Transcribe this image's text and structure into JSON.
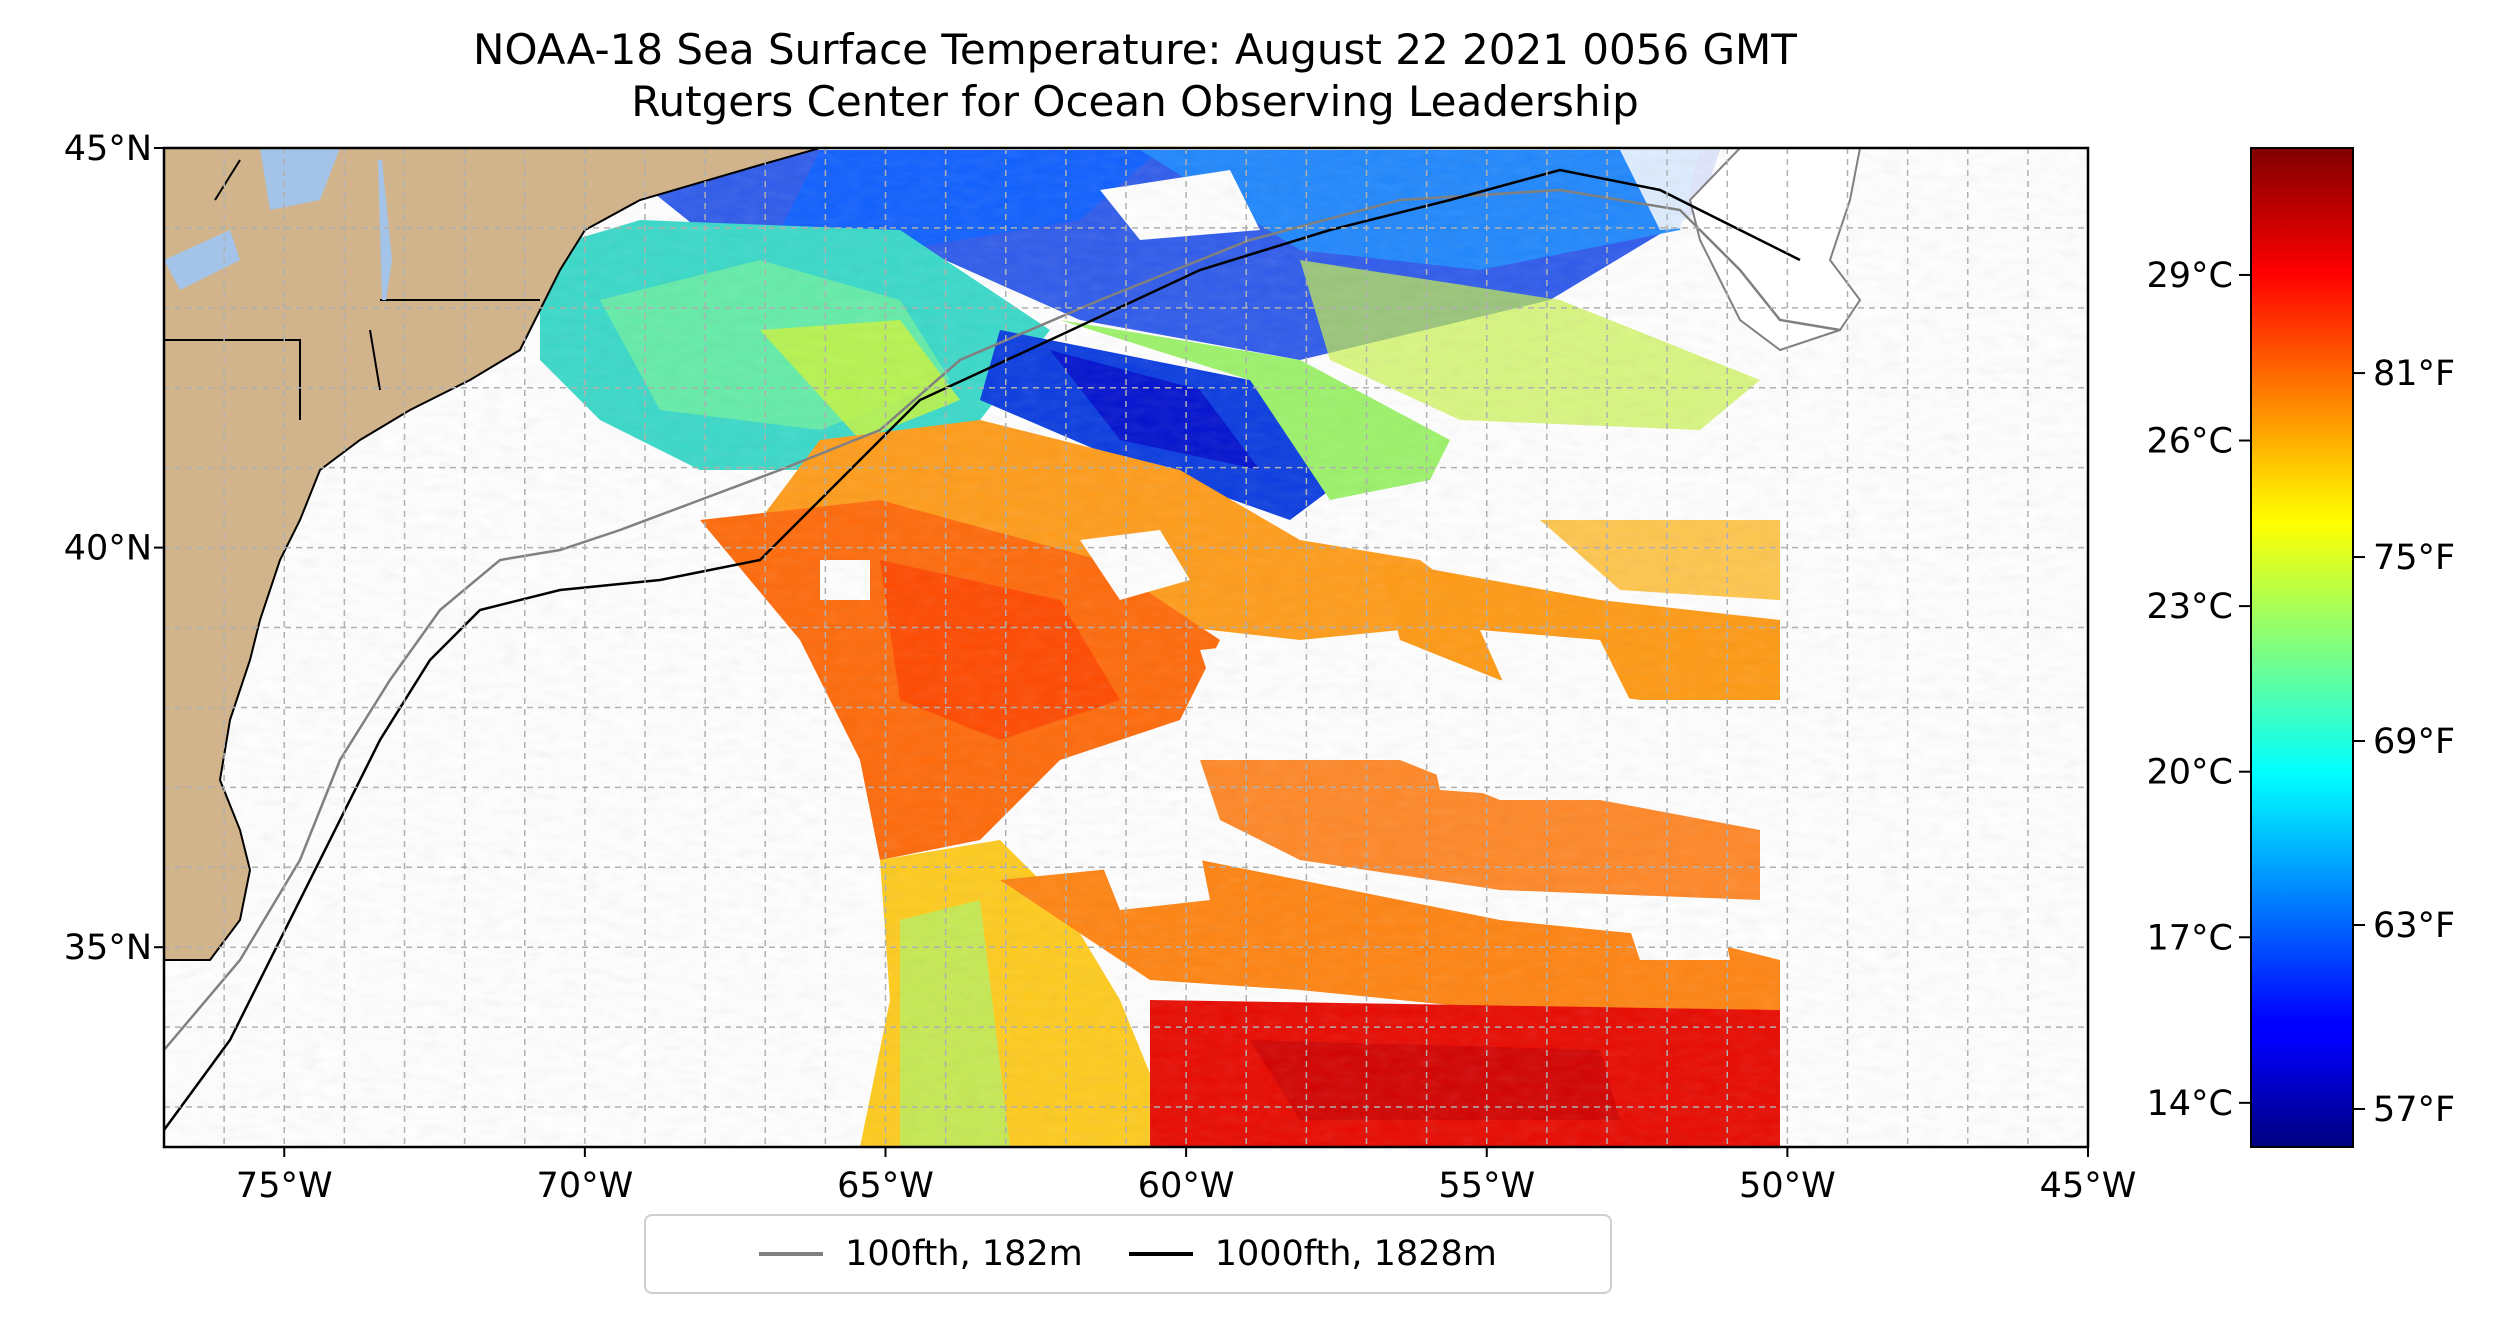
{
  "title_line1": "NOAA-18 Sea Surface Temperature: August 22 2021 0056 GMT",
  "title_line2": "Rutgers Center for Ocean Observing Leadership",
  "map": {
    "lon_range": [
      -77,
      -45
    ],
    "lat_range": [
      32.5,
      45
    ],
    "lon_ticks": [
      {
        "value": -75,
        "label": "75°W"
      },
      {
        "value": -70,
        "label": "70°W"
      },
      {
        "value": -65,
        "label": "65°W"
      },
      {
        "value": -60,
        "label": "60°W"
      },
      {
        "value": -55,
        "label": "55°W"
      },
      {
        "value": -50,
        "label": "50°W"
      },
      {
        "value": -45,
        "label": "45°W"
      }
    ],
    "lat_ticks": [
      {
        "value": 45,
        "label": "45°N"
      },
      {
        "value": 40,
        "label": "40°N"
      },
      {
        "value": 35,
        "label": "35°N"
      }
    ],
    "grid": true,
    "land_color": "#d2b48c",
    "lake_color": "#a3c4e8",
    "data_east_limit": -50
  },
  "colorbar": {
    "colormap": "jet",
    "celsius_ticks": [
      {
        "value": 29,
        "label": "29°C"
      },
      {
        "value": 26,
        "label": "26°C"
      },
      {
        "value": 23,
        "label": "23°C"
      },
      {
        "value": 20,
        "label": "20°C"
      },
      {
        "value": 17,
        "label": "17°C"
      },
      {
        "value": 14,
        "label": "14°C"
      }
    ],
    "fahrenheit_ticks": [
      {
        "value": 81,
        "label": "81°F"
      },
      {
        "value": 75,
        "label": "75°F"
      },
      {
        "value": 69,
        "label": "69°F"
      },
      {
        "value": 63,
        "label": "63°F"
      },
      {
        "value": 57,
        "label": "57°F"
      }
    ]
  },
  "legend": {
    "entries": [
      {
        "label": "100fth, 182m",
        "color": "#808080"
      },
      {
        "label": "1000fth, 1828m",
        "color": "#000000"
      }
    ]
  }
}
